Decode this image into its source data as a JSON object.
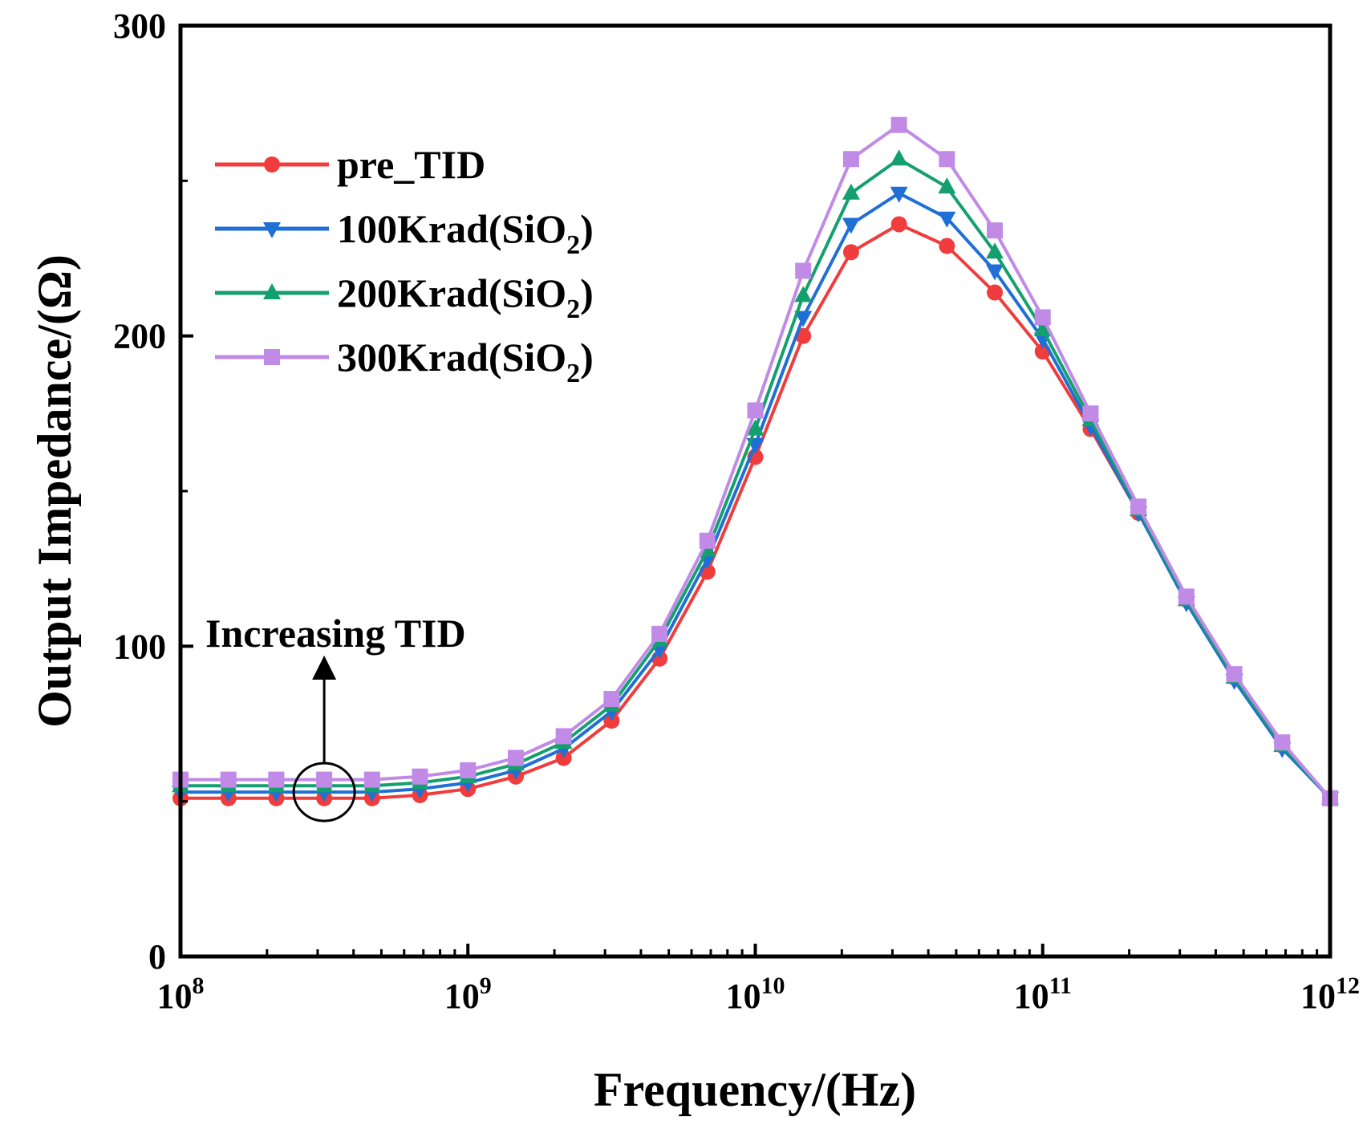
{
  "chart_data": {
    "type": "line",
    "xscale": "log",
    "xlim_exp": [
      8,
      12
    ],
    "ylim": [
      0,
      300
    ],
    "xlabel": "Frequency/(Hz)",
    "ylabel": "Output Impedance/(Ω)",
    "x_tick_labels": [
      {
        "base": "10",
        "exp": "8"
      },
      {
        "base": "10",
        "exp": "9"
      },
      {
        "base": "10",
        "exp": "10"
      },
      {
        "base": "10",
        "exp": "11"
      },
      {
        "base": "10",
        "exp": "12"
      }
    ],
    "y_ticks": [
      0,
      100,
      200,
      300
    ],
    "y_minor_ticks": [
      50,
      150,
      250
    ],
    "x_exp": [
      8.0,
      8.1667,
      8.3333,
      8.5,
      8.6667,
      8.8333,
      9.0,
      9.1667,
      9.3333,
      9.5,
      9.6667,
      9.8333,
      10.0,
      10.1667,
      10.3333,
      10.5,
      10.6667,
      10.8333,
      11.0,
      11.1667,
      11.3333,
      11.5,
      11.6667,
      11.8333,
      12.0
    ],
    "series": [
      {
        "name": "pre_TID",
        "color": "#f03c3c",
        "marker": "circle",
        "values": [
          51,
          51,
          51,
          51,
          51,
          52,
          54,
          58,
          64,
          76,
          96,
          124,
          161,
          200,
          227,
          236,
          229,
          214,
          195,
          170,
          143,
          115,
          90,
          68,
          51
        ]
      },
      {
        "name": "100Krad(SiO2)",
        "label_main": "100Krad(SiO",
        "label_sub": "2",
        "label_end": ")",
        "color": "#1f6fd6",
        "marker": "triangle-down",
        "values": [
          53,
          53,
          53,
          53,
          53,
          54,
          56,
          60,
          67,
          79,
          99,
          128,
          165,
          206,
          236,
          246,
          238,
          221,
          199,
          171,
          143,
          114,
          89,
          67,
          51
        ]
      },
      {
        "name": "200Krad(SiO2)",
        "label_main": "200Krad(SiO",
        "label_sub": "2",
        "label_end": ")",
        "color": "#14a06e",
        "marker": "triangle-up",
        "values": [
          55,
          55,
          55,
          55,
          55,
          56,
          58,
          62,
          69,
          81,
          102,
          131,
          170,
          213,
          246,
          257,
          248,
          227,
          202,
          173,
          144,
          115,
          90,
          68,
          51
        ]
      },
      {
        "name": "300Krad(SiO2)",
        "label_main": "300Krad(SiO",
        "label_sub": "2",
        "label_end": ")",
        "color": "#c08ae6",
        "marker": "square",
        "values": [
          57,
          57,
          57,
          57,
          57,
          58,
          60,
          64,
          71,
          83,
          104,
          134,
          176,
          221,
          257,
          268,
          257,
          234,
          206,
          175,
          145,
          116,
          91,
          69,
          51
        ]
      }
    ],
    "legend": {
      "position": "top-left"
    },
    "annotations": [
      {
        "text": "Increasing TID",
        "arrow": "up",
        "circle_at_x_exp": 8.5,
        "circle_at_y": 53
      }
    ]
  }
}
